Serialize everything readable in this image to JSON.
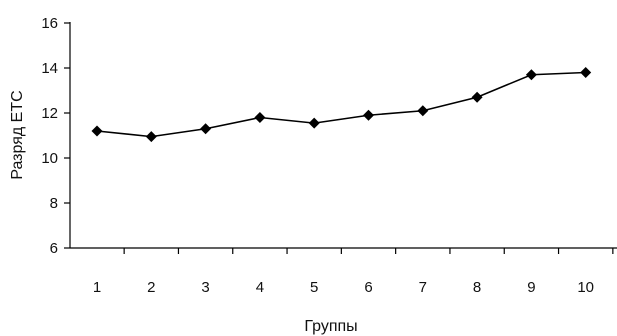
{
  "chart_data": {
    "type": "line",
    "categories": [
      "1",
      "2",
      "3",
      "4",
      "5",
      "6",
      "7",
      "8",
      "9",
      "10"
    ],
    "series": [
      {
        "values": [
          11.2,
          10.95,
          11.3,
          11.8,
          11.55,
          11.9,
          12.1,
          12.7,
          13.7,
          13.8
        ]
      }
    ],
    "xlabel": "Группы",
    "ylabel": "Разряд ЕТС",
    "ylim": [
      6,
      16
    ],
    "yticks": [
      "6",
      "8",
      "10",
      "12",
      "14",
      "16"
    ],
    "grid": false,
    "marker": "diamond",
    "line_color": "#000000"
  }
}
